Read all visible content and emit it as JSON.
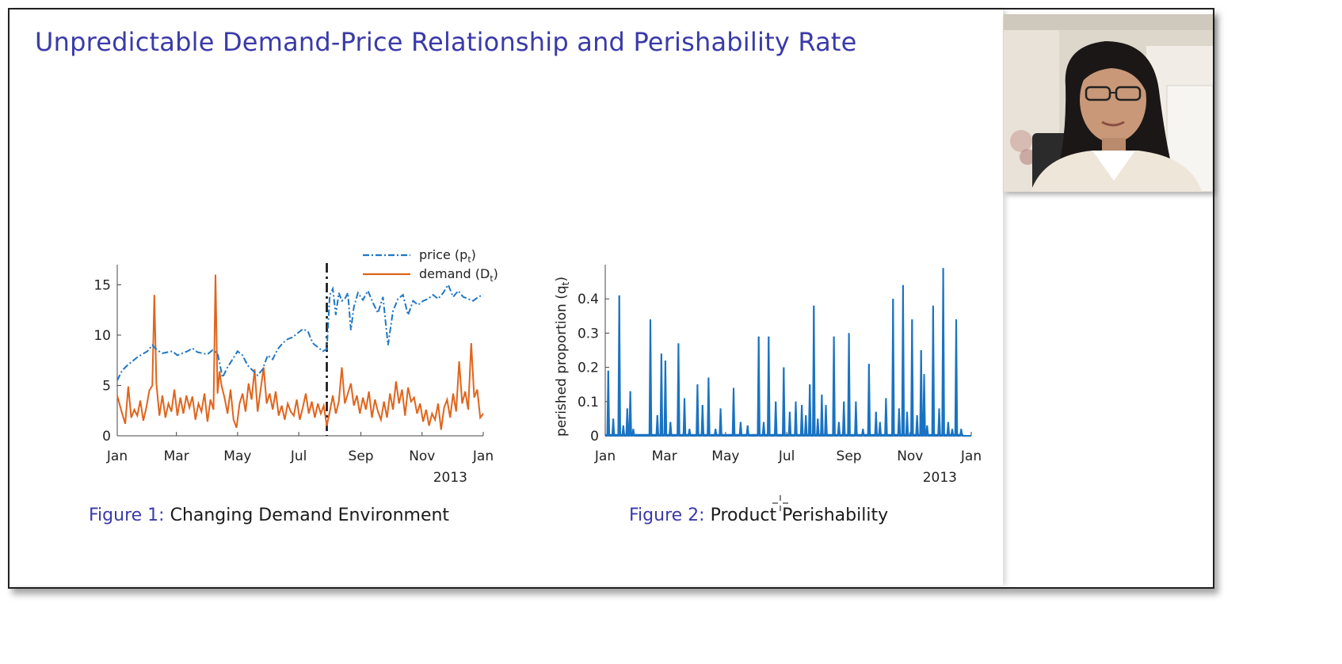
{
  "slide": {
    "title": "Unpredictable Demand-Price Relationship and Perishability Rate",
    "colors": {
      "title": "#3a3aa8",
      "price": "#1f77c4",
      "demand": "#e0641c",
      "perish": "#1a73c2"
    }
  },
  "captions": [
    {
      "figure": "Figure 1:",
      "text": "Changing Demand Environment"
    },
    {
      "figure": "Figure 2:",
      "text": "Product Perishability"
    }
  ],
  "chart_data": [
    {
      "type": "line",
      "title": "",
      "xlabel": "",
      "ylabel": "",
      "year_label": "2013",
      "x_ticks": [
        "Jan",
        "Mar",
        "May",
        "Jul",
        "Sep",
        "Nov",
        "Jan"
      ],
      "x_tick_days": [
        0,
        59,
        120,
        181,
        243,
        304,
        365
      ],
      "y_ticks": [
        0,
        5,
        10,
        15
      ],
      "xlim": [
        0,
        365
      ],
      "ylim": [
        0,
        17
      ],
      "vline_day": 209,
      "legend": {
        "position": "top-right",
        "entries": [
          "price (p_t)",
          "demand (D_t)"
        ]
      },
      "series": [
        {
          "name": "price (p_t)",
          "style": "dash-dot",
          "x": [
            0,
            5,
            10,
            15,
            20,
            25,
            30,
            35,
            40,
            45,
            50,
            55,
            60,
            65,
            70,
            75,
            80,
            85,
            90,
            95,
            100,
            105,
            110,
            115,
            120,
            125,
            130,
            135,
            140,
            145,
            150,
            155,
            160,
            165,
            170,
            175,
            180,
            185,
            190,
            195,
            200,
            205,
            209,
            212,
            215,
            218,
            221,
            224,
            227,
            230,
            233,
            236,
            240,
            245,
            250,
            255,
            260,
            265,
            270,
            275,
            280,
            285,
            290,
            295,
            300,
            305,
            310,
            315,
            320,
            325,
            330,
            335,
            340,
            345,
            350,
            355,
            360,
            365
          ],
          "values": [
            5.5,
            6.5,
            7.0,
            7.4,
            7.8,
            8.1,
            8.4,
            9.0,
            8.5,
            8.2,
            8.3,
            8.4,
            8.0,
            8.2,
            8.4,
            8.7,
            8.3,
            8.2,
            8.1,
            8.5,
            8.2,
            5.8,
            6.8,
            7.6,
            8.4,
            8.0,
            7.0,
            6.5,
            6.0,
            6.6,
            8.0,
            7.6,
            8.6,
            9.2,
            9.6,
            9.8,
            10.2,
            10.6,
            10.4,
            9.2,
            8.8,
            8.4,
            8.6,
            14.0,
            14.6,
            12.0,
            14.2,
            13.4,
            13.6,
            14.2,
            10.5,
            12.8,
            14.2,
            13.5,
            14.4,
            13.2,
            12.2,
            13.8,
            9.0,
            12.4,
            13.6,
            14.0,
            12.0,
            13.4,
            13.0,
            13.4,
            13.6,
            14.0,
            13.6,
            14.2,
            15.0,
            13.8,
            14.4,
            13.8,
            13.6,
            13.4,
            13.8,
            14.0
          ]
        },
        {
          "name": "demand (D_t)",
          "style": "solid",
          "x": [
            0,
            4,
            8,
            11,
            14,
            17,
            20,
            23,
            26,
            29,
            32,
            35,
            37,
            39,
            42,
            45,
            48,
            51,
            54,
            57,
            60,
            63,
            66,
            69,
            72,
            75,
            78,
            81,
            84,
            87,
            90,
            93,
            96,
            98,
            100,
            102,
            104,
            107,
            110,
            113,
            116,
            119,
            122,
            125,
            128,
            131,
            134,
            137,
            140,
            143,
            146,
            149,
            152,
            155,
            158,
            161,
            164,
            167,
            170,
            173,
            176,
            179,
            182,
            185,
            188,
            191,
            194,
            197,
            200,
            203,
            206,
            209,
            212,
            215,
            218,
            221,
            224,
            227,
            230,
            233,
            236,
            239,
            242,
            245,
            248,
            251,
            254,
            257,
            260,
            263,
            266,
            269,
            272,
            275,
            278,
            281,
            284,
            287,
            290,
            293,
            296,
            299,
            302,
            305,
            308,
            311,
            314,
            317,
            320,
            323,
            326,
            329,
            332,
            335,
            338,
            341,
            344,
            347,
            350,
            353,
            356,
            359,
            362,
            365
          ],
          "values": [
            4.0,
            2.5,
            1.2,
            4.9,
            1.8,
            2.6,
            2.0,
            3.5,
            1.5,
            2.8,
            4.5,
            5.0,
            14.0,
            5.2,
            2.0,
            4.0,
            1.8,
            3.2,
            2.4,
            4.6,
            2.0,
            3.8,
            2.2,
            4.0,
            2.8,
            3.9,
            1.6,
            3.2,
            2.4,
            4.2,
            1.4,
            3.6,
            2.6,
            16.0,
            4.2,
            6.4,
            5.0,
            3.8,
            2.2,
            4.6,
            1.6,
            0.8,
            3.2,
            4.2,
            2.4,
            5.2,
            3.6,
            6.6,
            2.4,
            4.6,
            6.8,
            3.2,
            4.2,
            2.6,
            4.4,
            2.0,
            3.0,
            1.6,
            3.2,
            2.4,
            2.0,
            3.6,
            1.6,
            2.8,
            4.2,
            2.2,
            3.4,
            1.8,
            3.2,
            2.2,
            3.0,
            1.0,
            2.4,
            4.0,
            2.2,
            3.4,
            6.8,
            3.2,
            4.2,
            5.2,
            3.0,
            4.0,
            2.2,
            3.8,
            2.6,
            4.4,
            1.8,
            3.6,
            2.4,
            1.6,
            3.4,
            1.8,
            4.2,
            2.6,
            5.4,
            3.2,
            4.6,
            2.0,
            4.8,
            3.4,
            3.8,
            2.2,
            3.2,
            1.4,
            2.6,
            1.0,
            2.2,
            1.6,
            3.2,
            0.6,
            2.8,
            3.6,
            1.8,
            4.2,
            2.4,
            7.4,
            3.2,
            4.4,
            2.6,
            9.2,
            3.8,
            4.6,
            1.8,
            2.2
          ]
        }
      ]
    },
    {
      "type": "line",
      "title": "",
      "xlabel": "",
      "ylabel": "perished proportion (q_t)",
      "year_label": "2013",
      "x_ticks": [
        "Jan",
        "Mar",
        "May",
        "Jul",
        "Sep",
        "Nov",
        "Jan"
      ],
      "x_tick_days": [
        0,
        59,
        120,
        181,
        243,
        304,
        365
      ],
      "y_ticks": [
        0,
        0.1,
        0.2,
        0.3,
        0.4
      ],
      "xlim": [
        0,
        365
      ],
      "ylim": [
        0,
        0.5
      ],
      "spike_days": [
        3,
        8,
        14,
        18,
        22,
        25,
        28,
        45,
        52,
        56,
        60,
        65,
        73,
        79,
        84,
        92,
        97,
        103,
        110,
        115,
        128,
        135,
        142,
        153,
        158,
        163,
        170,
        178,
        184,
        190,
        196,
        200,
        204,
        208,
        212,
        216,
        220,
        228,
        233,
        238,
        243,
        250,
        257,
        263,
        270,
        274,
        280,
        287,
        293,
        297,
        301,
        306,
        311,
        315,
        318,
        321,
        327,
        333,
        337,
        342,
        346,
        350,
        355
      ],
      "spike_values": [
        0.19,
        0.05,
        0.41,
        0.03,
        0.08,
        0.13,
        0.02,
        0.34,
        0.06,
        0.24,
        0.22,
        0.04,
        0.27,
        0.11,
        0.02,
        0.15,
        0.09,
        0.17,
        0.02,
        0.08,
        0.14,
        0.04,
        0.03,
        0.29,
        0.04,
        0.29,
        0.1,
        0.2,
        0.07,
        0.1,
        0.09,
        0.06,
        0.15,
        0.38,
        0.05,
        0.12,
        0.09,
        0.29,
        0.04,
        0.1,
        0.3,
        0.1,
        0.02,
        0.21,
        0.07,
        0.04,
        0.11,
        0.4,
        0.08,
        0.44,
        0.07,
        0.34,
        0.06,
        0.25,
        0.18,
        0.03,
        0.38,
        0.08,
        0.49,
        0.04,
        0.02,
        0.34,
        0.02
      ]
    }
  ]
}
